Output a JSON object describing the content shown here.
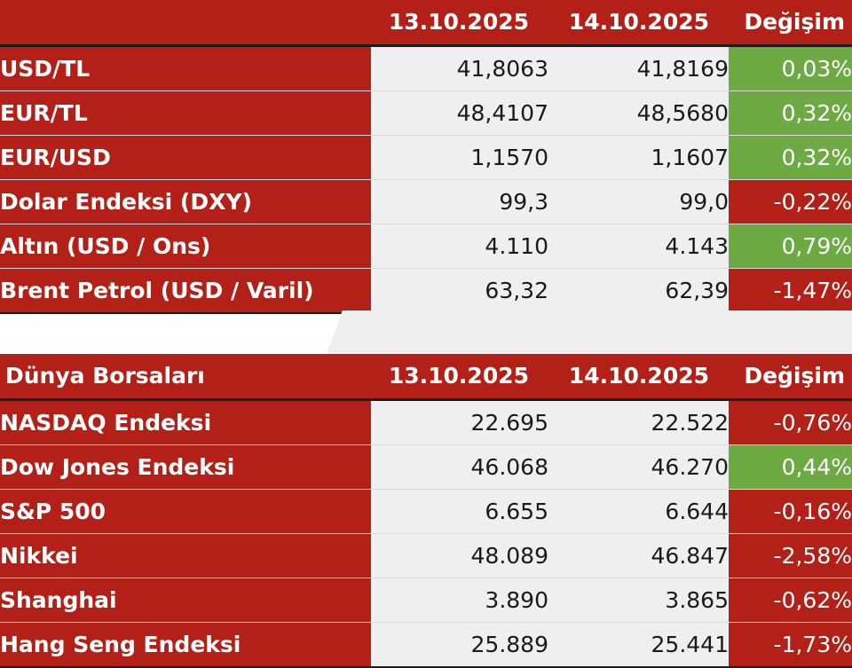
{
  "fx": {
    "header": {
      "label": "",
      "date1": "13.10.2025",
      "date2": "14.10.2025",
      "change": "Değişim"
    },
    "rows": [
      {
        "name": "USD/TL",
        "v1": "41,8063",
        "v2": "41,8169",
        "chg": "0,03%"
      },
      {
        "name": "EUR/TL",
        "v1": "48,4107",
        "v2": "48,5680",
        "chg": "0,32%"
      },
      {
        "name": "EUR/USD",
        "v1": "1,1570",
        "v2": "1,1607",
        "chg": "0,32%"
      },
      {
        "name": "Dolar Endeksi (DXY)",
        "v1": "99,3",
        "v2": "99,0",
        "chg": "-0,22%"
      },
      {
        "name": "Altın (USD / Ons)",
        "v1": "4.110",
        "v2": "4.143",
        "chg": "0,79%"
      },
      {
        "name": "Brent Petrol (USD / Varil)",
        "v1": "63,32",
        "v2": "62,39",
        "chg": "-1,47%"
      }
    ]
  },
  "world": {
    "header": {
      "label": "Dünya Borsaları",
      "date1": "13.10.2025",
      "date2": "14.10.2025",
      "change": "Değişim"
    },
    "rows": [
      {
        "name": "NASDAQ Endeksi",
        "v1": "22.695",
        "v2": "22.522",
        "chg": "-0,76%"
      },
      {
        "name": "Dow Jones Endeksi",
        "v1": "46.068",
        "v2": "46.270",
        "chg": "0,44%"
      },
      {
        "name": "S&P 500",
        "v1": "6.655",
        "v2": "6.644",
        "chg": "-0,16%"
      },
      {
        "name": "Nikkei",
        "v1": "48.089",
        "v2": "46.847",
        "chg": "-2,58%"
      },
      {
        "name": "Shanghai",
        "v1": "3.890",
        "v2": "3.865",
        "chg": "-0,62%"
      },
      {
        "name": "Hang Seng Endeksi",
        "v1": "25.889",
        "v2": "25.441",
        "chg": "-1,73%"
      }
    ]
  },
  "colors": {
    "positive": "#6eaa44",
    "negative": "#b22017",
    "header": "#b22017",
    "value_bg": "#efefef"
  }
}
